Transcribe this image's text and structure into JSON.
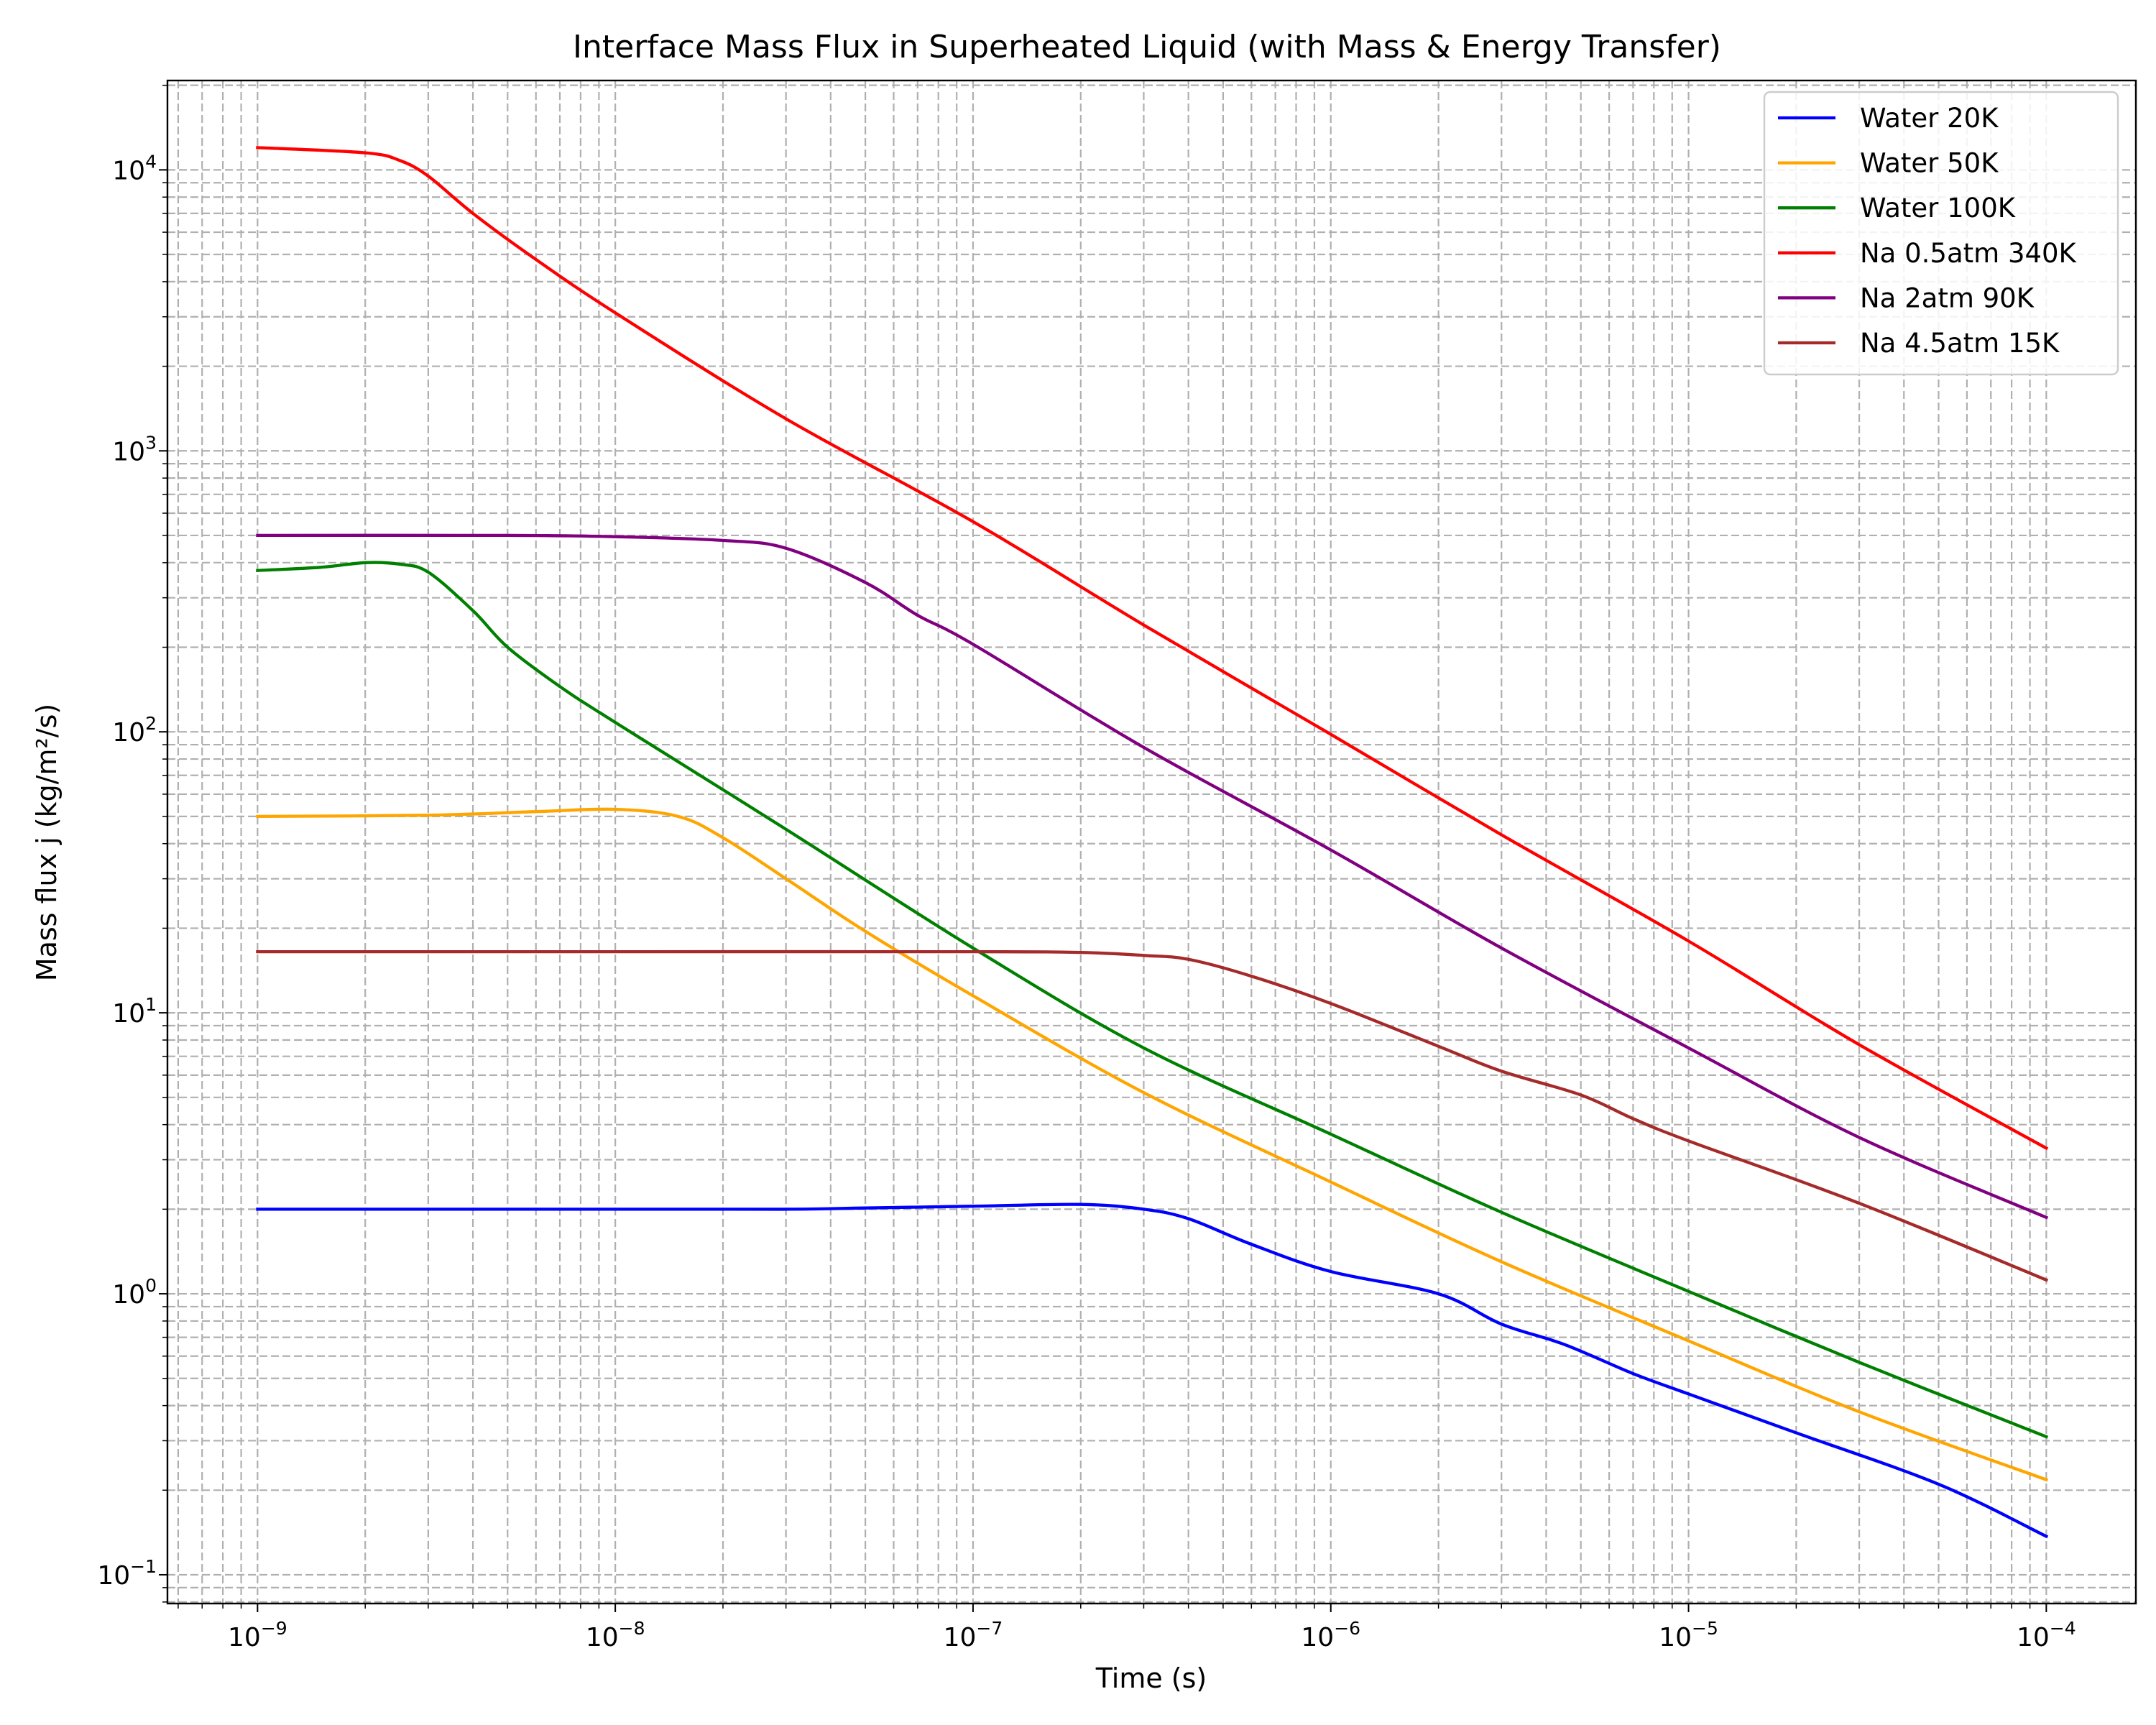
{
  "chart_data": {
    "type": "line",
    "title": "Interface Mass Flux in Superheated Liquid (with Mass & Energy Transfer)",
    "xlabel": "Time (s)",
    "ylabel": "Mass flux j (kg/m²/s)",
    "xscale": "log",
    "yscale": "log",
    "xlim": [
      5.6e-10,
      0.000178
    ],
    "ylim": [
      0.079,
      20800
    ],
    "grid": true,
    "legend_position": "top-right",
    "x_ticks": [
      {
        "value": 1e-09,
        "base": "10",
        "exp": "−9"
      },
      {
        "value": 1e-08,
        "base": "10",
        "exp": "−8"
      },
      {
        "value": 1e-07,
        "base": "10",
        "exp": "−7"
      },
      {
        "value": 1e-06,
        "base": "10",
        "exp": "−6"
      },
      {
        "value": 1e-05,
        "base": "10",
        "exp": "−5"
      },
      {
        "value": 0.0001,
        "base": "10",
        "exp": "−4"
      }
    ],
    "y_ticks": [
      {
        "value": 0.1,
        "base": "10",
        "exp": "−1"
      },
      {
        "value": 1,
        "base": "10",
        "exp": "0"
      },
      {
        "value": 10,
        "base": "10",
        "exp": "1"
      },
      {
        "value": 100,
        "base": "10",
        "exp": "2"
      },
      {
        "value": 1000,
        "base": "10",
        "exp": "3"
      },
      {
        "value": 10000,
        "base": "10",
        "exp": "4"
      }
    ],
    "series": [
      {
        "name": "Water 20K",
        "color": "#0000ff",
        "points": [
          [
            1e-09,
            2.0
          ],
          [
            1e-08,
            2.0
          ],
          [
            3e-08,
            2.0
          ],
          [
            5e-08,
            2.02
          ],
          [
            1e-07,
            2.05
          ],
          [
            2e-07,
            2.08
          ],
          [
            3e-07,
            2.0
          ],
          [
            4e-07,
            1.85
          ],
          [
            6e-07,
            1.5
          ],
          [
            1e-06,
            1.2
          ],
          [
            2e-06,
            1.0
          ],
          [
            3e-06,
            0.78
          ],
          [
            4.5e-06,
            0.66
          ],
          [
            7e-06,
            0.52
          ],
          [
            1e-05,
            0.44
          ],
          [
            2e-05,
            0.32
          ],
          [
            5e-05,
            0.21
          ],
          [
            0.0001,
            0.137
          ]
        ]
      },
      {
        "name": "Water 50K",
        "color": "#ffa500",
        "points": [
          [
            1e-09,
            50
          ],
          [
            3e-09,
            50.5
          ],
          [
            6e-09,
            52
          ],
          [
            1e-08,
            53
          ],
          [
            1.5e-08,
            50
          ],
          [
            2e-08,
            42
          ],
          [
            3e-08,
            30
          ],
          [
            5e-08,
            19.5
          ],
          [
            1e-07,
            11.5
          ],
          [
            3e-07,
            5.2
          ],
          [
            1e-06,
            2.5
          ],
          [
            3e-06,
            1.3
          ],
          [
            1e-05,
            0.68
          ],
          [
            3e-05,
            0.38
          ],
          [
            0.0001,
            0.218
          ]
        ]
      },
      {
        "name": "Water 100K",
        "color": "#008000",
        "points": [
          [
            1e-09,
            375
          ],
          [
            1.5e-09,
            385
          ],
          [
            2e-09,
            400
          ],
          [
            2.5e-09,
            395
          ],
          [
            3e-09,
            370
          ],
          [
            4e-09,
            270
          ],
          [
            5e-09,
            200
          ],
          [
            7e-09,
            145
          ],
          [
            1e-08,
            108
          ],
          [
            3e-08,
            45
          ],
          [
            1e-07,
            17
          ],
          [
            3e-07,
            7.5
          ],
          [
            1e-06,
            3.7
          ],
          [
            3e-06,
            1.95
          ],
          [
            1e-05,
            1.02
          ],
          [
            3e-05,
            0.57
          ],
          [
            0.0001,
            0.31
          ]
        ]
      },
      {
        "name": "Na 0.5atm 340K",
        "color": "#ff0000",
        "points": [
          [
            1e-09,
            12000
          ],
          [
            2e-09,
            11500
          ],
          [
            2.5e-09,
            10800
          ],
          [
            3e-09,
            9500
          ],
          [
            4e-09,
            7000
          ],
          [
            6e-09,
            4800
          ],
          [
            1e-08,
            3100
          ],
          [
            3e-08,
            1300
          ],
          [
            1e-07,
            560
          ],
          [
            3e-07,
            240
          ],
          [
            1e-06,
            98
          ],
          [
            3e-06,
            43
          ],
          [
            1e-05,
            18
          ],
          [
            3e-05,
            7.7
          ],
          [
            0.0001,
            3.3
          ]
        ]
      },
      {
        "name": "Na 2atm 90K",
        "color": "#800080",
        "points": [
          [
            1e-09,
            500
          ],
          [
            5e-09,
            500
          ],
          [
            1e-08,
            495
          ],
          [
            2e-08,
            480
          ],
          [
            3e-08,
            450
          ],
          [
            5e-08,
            340
          ],
          [
            7e-08,
            260
          ],
          [
            1e-07,
            205
          ],
          [
            3e-07,
            88
          ],
          [
            1e-06,
            38
          ],
          [
            3e-06,
            17
          ],
          [
            1e-05,
            7.5
          ],
          [
            3e-05,
            3.6
          ],
          [
            0.0001,
            1.87
          ]
        ]
      },
      {
        "name": "Na 4.5atm 15K",
        "color": "#a52a2a",
        "points": [
          [
            1e-09,
            16.5
          ],
          [
            1e-08,
            16.5
          ],
          [
            1e-07,
            16.5
          ],
          [
            2e-07,
            16.4
          ],
          [
            3e-07,
            16.0
          ],
          [
            4e-07,
            15.5
          ],
          [
            6e-07,
            13.5
          ],
          [
            1e-06,
            10.8
          ],
          [
            2e-06,
            7.6
          ],
          [
            3e-06,
            6.2
          ],
          [
            5e-06,
            5.1
          ],
          [
            7e-06,
            4.2
          ],
          [
            1e-05,
            3.5
          ],
          [
            3e-05,
            2.1
          ],
          [
            0.0001,
            1.12
          ]
        ]
      }
    ]
  }
}
